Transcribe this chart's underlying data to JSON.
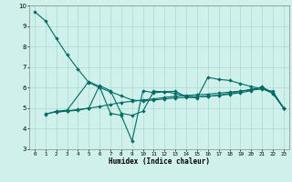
{
  "xlabel": "Humidex (Indice chaleur)",
  "bg_color": "#cff0eb",
  "grid_color": "#aad8d0",
  "line_color": "#006b63",
  "xlim": [
    -0.5,
    23.5
  ],
  "ylim": [
    3,
    10
  ],
  "xticks": [
    0,
    1,
    2,
    3,
    4,
    5,
    6,
    7,
    8,
    9,
    10,
    11,
    12,
    13,
    14,
    15,
    16,
    17,
    18,
    19,
    20,
    21,
    22,
    23
  ],
  "yticks": [
    3,
    4,
    5,
    6,
    7,
    8,
    9,
    10
  ],
  "line1_x": [
    0,
    1,
    2,
    3,
    4,
    5,
    6,
    7,
    8,
    9,
    10,
    11,
    12,
    13,
    14,
    15,
    16,
    17,
    18,
    19,
    20,
    21,
    22,
    23
  ],
  "line1_y": [
    9.7,
    9.25,
    8.4,
    7.6,
    6.9,
    6.25,
    6.0,
    5.8,
    5.6,
    5.4,
    5.35,
    5.4,
    5.45,
    5.5,
    5.52,
    5.55,
    5.58,
    5.62,
    5.68,
    5.75,
    5.85,
    6.05,
    5.72,
    5.0
  ],
  "line2_x": [
    1,
    2,
    3,
    5,
    6,
    7,
    8,
    9,
    10,
    11,
    12,
    13,
    14,
    15,
    16,
    17,
    18,
    19,
    20,
    21,
    22,
    23
  ],
  "line2_y": [
    4.7,
    4.85,
    4.9,
    6.3,
    6.05,
    4.75,
    4.65,
    3.4,
    5.85,
    5.75,
    5.8,
    5.82,
    5.55,
    5.5,
    6.5,
    6.4,
    6.35,
    6.2,
    6.05,
    5.95,
    5.72,
    5.0
  ],
  "line3_x": [
    1,
    2,
    3,
    4,
    5,
    6,
    7,
    8,
    9,
    10,
    11,
    12,
    13,
    14,
    15,
    16,
    17,
    18,
    19,
    20,
    21,
    22,
    23
  ],
  "line3_y": [
    4.72,
    4.82,
    4.85,
    4.9,
    5.0,
    6.1,
    5.85,
    4.75,
    4.65,
    4.85,
    5.82,
    5.8,
    5.72,
    5.58,
    5.55,
    5.58,
    5.63,
    5.72,
    5.82,
    5.92,
    6.0,
    5.75,
    5.0
  ],
  "line4_x": [
    2,
    3,
    4,
    5,
    6,
    7,
    8,
    9,
    10,
    11,
    12,
    13,
    14,
    15,
    16,
    17,
    18,
    19,
    20,
    21,
    22,
    23
  ],
  "line4_y": [
    4.8,
    4.87,
    4.93,
    5.0,
    5.08,
    5.18,
    5.28,
    5.33,
    5.4,
    5.45,
    5.52,
    5.58,
    5.62,
    5.65,
    5.68,
    5.73,
    5.78,
    5.83,
    5.88,
    5.93,
    5.82,
    5.0
  ]
}
